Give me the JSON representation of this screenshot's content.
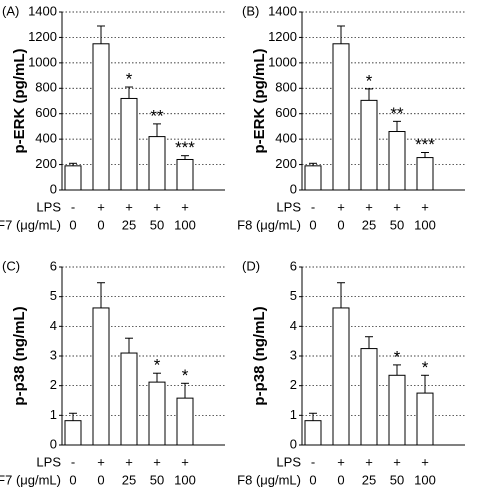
{
  "chart_data": [
    {
      "type": "bar",
      "panel_label": "(A)",
      "y_label": "p-ERK (pg/mL)",
      "lps_label": "LPS",
      "dose_label": "F7 (μg/mL)",
      "lps": [
        "-",
        "+",
        "+",
        "+",
        "+"
      ],
      "categories": [
        "0",
        "0",
        "25",
        "50",
        "100"
      ],
      "values": [
        190,
        1150,
        720,
        420,
        240
      ],
      "errors": [
        20,
        140,
        90,
        100,
        30
      ],
      "annotations": [
        null,
        null,
        "*",
        "**",
        "***"
      ],
      "ylim": [
        0,
        1400
      ],
      "yticks": [
        0,
        200,
        400,
        600,
        800,
        1000,
        1200,
        1400
      ],
      "grid": true,
      "color": "#ffffff"
    },
    {
      "type": "bar",
      "panel_label": "(B)",
      "y_label": "p-ERK (pg/mL)",
      "lps_label": "LPS",
      "dose_label": "F8 (μg/mL)",
      "lps": [
        "-",
        "+",
        "+",
        "+",
        "+"
      ],
      "categories": [
        "0",
        "0",
        "25",
        "50",
        "100"
      ],
      "values": [
        190,
        1150,
        705,
        460,
        255
      ],
      "errors": [
        20,
        140,
        90,
        80,
        40
      ],
      "annotations": [
        null,
        null,
        "*",
        "**",
        "***"
      ],
      "ylim": [
        0,
        1400
      ],
      "yticks": [
        0,
        200,
        400,
        600,
        800,
        1000,
        1200,
        1400
      ],
      "grid": true,
      "color": "#ffffff"
    },
    {
      "type": "bar",
      "panel_label": "(C)",
      "y_label": "p-p38 (ng/mL)",
      "lps_label": "LPS",
      "dose_label": "F7 (μg/mL)",
      "lps": [
        "-",
        "+",
        "+",
        "+",
        "+"
      ],
      "categories": [
        "0",
        "0",
        "25",
        "50",
        "100"
      ],
      "values": [
        0.82,
        4.62,
        3.1,
        2.12,
        1.58
      ],
      "errors": [
        0.25,
        0.85,
        0.5,
        0.3,
        0.5
      ],
      "annotations": [
        null,
        null,
        null,
        "*",
        "*"
      ],
      "ylim": [
        0,
        6
      ],
      "yticks": [
        0,
        1,
        2,
        3,
        4,
        5,
        6
      ],
      "grid": true,
      "color": "#ffffff"
    },
    {
      "type": "bar",
      "panel_label": "(D)",
      "y_label": "p-p38 (ng/mL)",
      "lps_label": "LPS",
      "dose_label": "F8 (μg/mL)",
      "lps": [
        "-",
        "+",
        "+",
        "+",
        "+"
      ],
      "categories": [
        "0",
        "0",
        "25",
        "50",
        "100"
      ],
      "values": [
        0.82,
        4.62,
        3.25,
        2.35,
        1.75
      ],
      "errors": [
        0.25,
        0.85,
        0.4,
        0.35,
        0.6
      ],
      "annotations": [
        null,
        null,
        null,
        "*",
        "*"
      ],
      "ylim": [
        0,
        6
      ],
      "yticks": [
        0,
        1,
        2,
        3,
        4,
        5,
        6
      ],
      "grid": true,
      "color": "#ffffff"
    }
  ]
}
